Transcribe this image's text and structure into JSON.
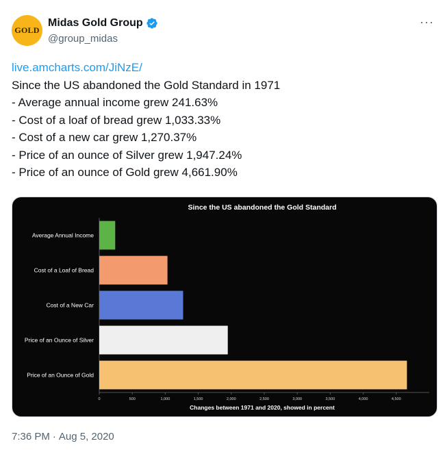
{
  "header": {
    "avatar_text": "GOLD",
    "display_name": "Midas Gold Group",
    "handle": "@group_midas",
    "more_label": "···",
    "verified_icon": "verified-badge-icon",
    "verified_color": "#1d9bf0"
  },
  "tweet": {
    "link": "live.amcharts.com/JiNzE/",
    "lines": [
      "Since the US abandoned the Gold Standard in 1971",
      "- Average annual income grew 241.63%",
      "- Cost of a loaf of bread grew 1,033.33%",
      "- Cost of a new car grew 1,270.37%",
      "- Price of an ounce of Silver grew 1,947.24%",
      "- Price of an ounce of Gold grew 4,661.90%"
    ]
  },
  "footer": {
    "time": "7:36 PM",
    "separator": "·",
    "date": "Aug 5, 2020"
  },
  "chart_data": {
    "type": "bar",
    "orientation": "horizontal",
    "title": "Since the US abandoned the Gold Standard",
    "xlabel": "Changes between 1971 and 2020, showed in percent",
    "ylabel": "",
    "categories": [
      "Average Annual Income",
      "Cost of a Loaf of Bread",
      "Cost of a New Car",
      "Price of an Ounce of Silver",
      "Price of an Ounce of Gold"
    ],
    "values": [
      241.63,
      1033.33,
      1270.37,
      1947.24,
      4661.9
    ],
    "colors": [
      "#5cb346",
      "#f39a6e",
      "#5a79d6",
      "#efefef",
      "#f6c171"
    ],
    "xlim": [
      0,
      5000
    ],
    "xticks": [
      0,
      500,
      1000,
      1500,
      2000,
      2500,
      3000,
      3500,
      4000,
      4500
    ],
    "xtick_labels": [
      "0",
      "500",
      "1,000",
      "1,500",
      "2,000",
      "2,500",
      "3,000",
      "3,500",
      "4,000",
      "4,500"
    ],
    "grid": false,
    "background": "#080808"
  }
}
